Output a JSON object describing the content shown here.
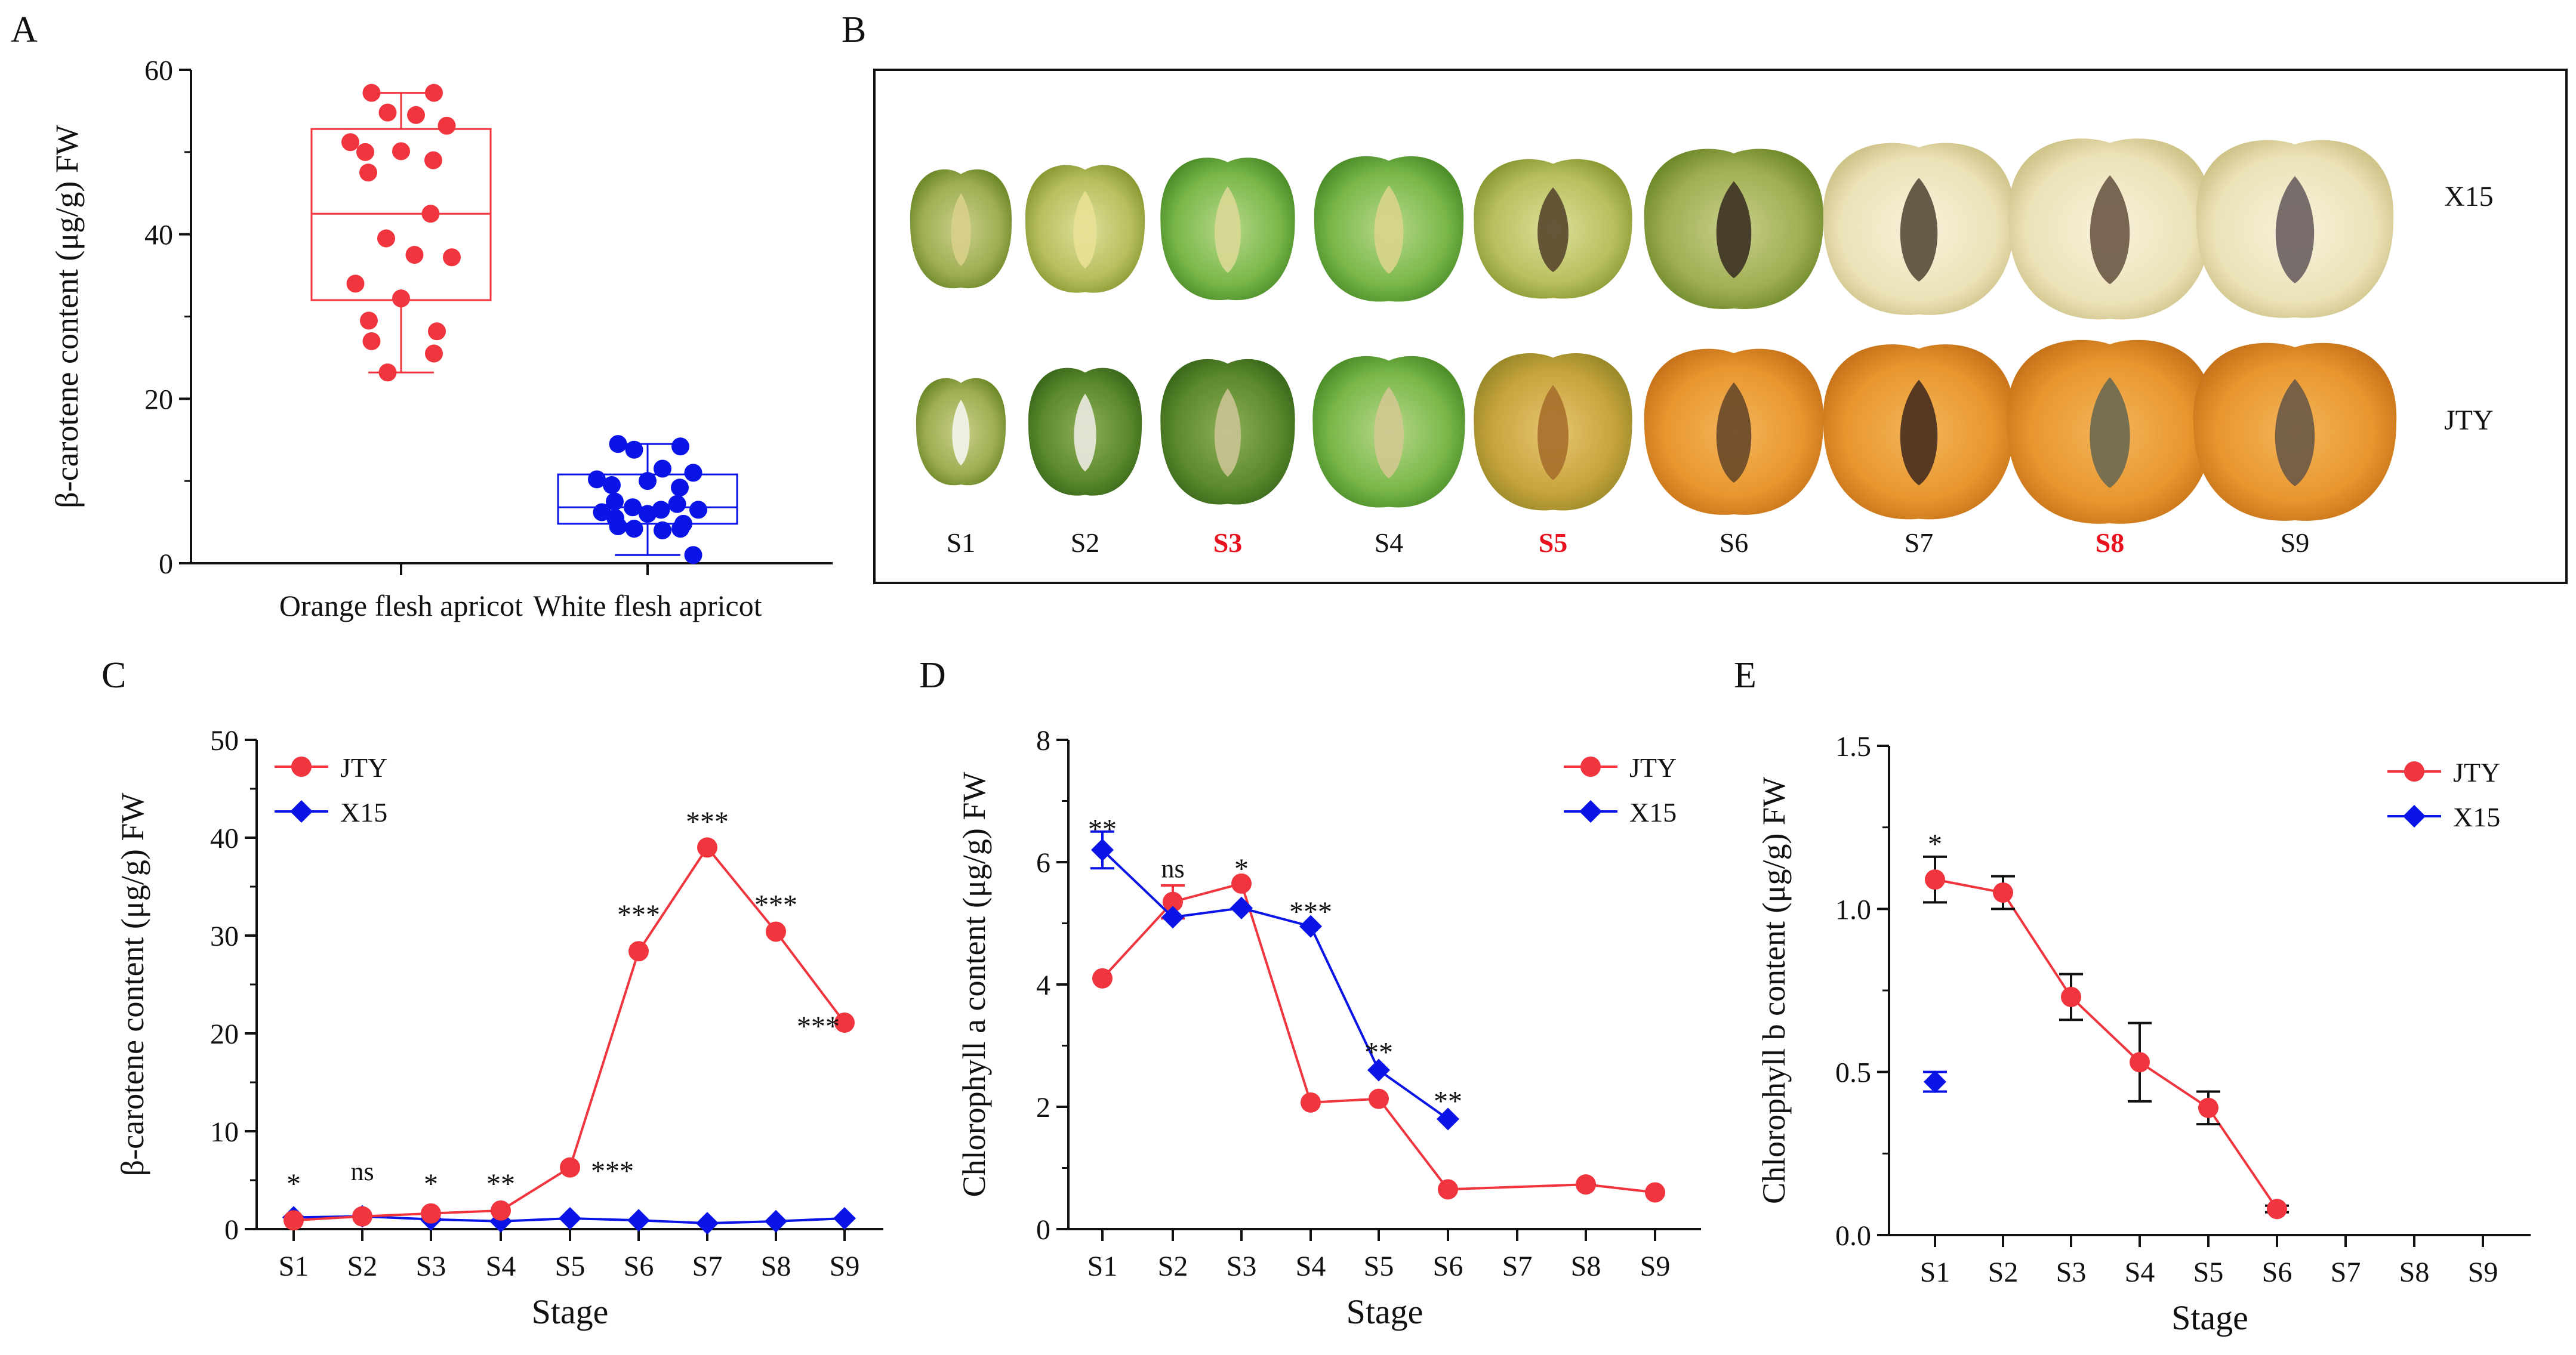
{
  "panels": {
    "A": {
      "letter": "A"
    },
    "B": {
      "letter": "B"
    },
    "C": {
      "letter": "C"
    },
    "D": {
      "letter": "D"
    },
    "E": {
      "letter": "E"
    }
  },
  "colors": {
    "red": "#f0353e",
    "blue": "#0a14e6",
    "axis": "#111111"
  },
  "photo_panel": {
    "row_labels": [
      "X15",
      "JTY"
    ],
    "stage_labels": [
      "S1",
      "S2",
      "S3",
      "S4",
      "S5",
      "S6",
      "S7",
      "S8",
      "S9"
    ],
    "highlighted_stages": [
      "S3",
      "S5",
      "S8"
    ]
  },
  "chart_data": [
    {
      "panel": "A",
      "type": "box",
      "ylabel": "β-carotene content (μg/g) FW",
      "categories": [
        "Orange flesh apricot",
        "White flesh apricot"
      ],
      "yticks": [
        0,
        20,
        40,
        60
      ],
      "ylim": [
        0,
        60
      ],
      "groups": [
        {
          "name": "Orange flesh apricot",
          "color": "#f0353e",
          "min": 23.2,
          "q1": 32.0,
          "median": 42.5,
          "q3": 52.8,
          "max": 57.2,
          "points": [
            57.2,
            57.2,
            54.8,
            54.5,
            53.2,
            51.2,
            50.1,
            50.0,
            49.0,
            47.5,
            42.5,
            39.5,
            37.5,
            37.2,
            34.0,
            32.2,
            29.5,
            28.2,
            27.0,
            25.5,
            23.2
          ]
        },
        {
          "name": "White flesh apricot",
          "color": "#0a14e6",
          "min": 1.0,
          "q1": 4.8,
          "median": 6.8,
          "q3": 10.8,
          "max": 14.5,
          "points": [
            14.5,
            14.2,
            13.8,
            11.5,
            11.0,
            10.2,
            10.0,
            9.5,
            9.2,
            7.5,
            7.2,
            6.8,
            6.5,
            6.5,
            6.2,
            6.0,
            5.5,
            4.8,
            4.5,
            4.2,
            4.2,
            4.0,
            1.0
          ]
        }
      ]
    },
    {
      "panel": "C",
      "type": "line",
      "xlabel": "Stage",
      "ylabel": "β-carotene content (μg/g) FW",
      "categories": [
        "S1",
        "S2",
        "S3",
        "S4",
        "S5",
        "S6",
        "S7",
        "S8",
        "S9"
      ],
      "yticks": [
        0,
        10,
        20,
        30,
        40,
        50
      ],
      "ylim": [
        0,
        50
      ],
      "legend": "top-left",
      "series": [
        {
          "name": "JTY",
          "color": "#f0353e",
          "marker": "circle",
          "values": [
            0.9,
            1.3,
            1.6,
            1.9,
            6.3,
            28.4,
            39.0,
            30.4,
            21.1
          ]
        },
        {
          "name": "X15",
          "color": "#0a14e6",
          "marker": "diamond",
          "values": [
            1.2,
            1.3,
            1.0,
            0.8,
            1.1,
            0.9,
            0.6,
            0.8,
            1.1
          ]
        }
      ],
      "annotations": [
        {
          "stage": "S1",
          "text": "*",
          "y": 5.0
        },
        {
          "stage": "S2",
          "text": "ns",
          "y": 5.0
        },
        {
          "stage": "S3",
          "text": "*",
          "y": 5.0
        },
        {
          "stage": "S4",
          "text": "**",
          "y": 5.0
        },
        {
          "stage": "S5",
          "text": "***",
          "y": 6.3,
          "side": "right"
        },
        {
          "stage": "S6",
          "text": "***",
          "y": 32.5
        },
        {
          "stage": "S7",
          "text": "***",
          "y": 42.0
        },
        {
          "stage": "S8",
          "text": "***",
          "y": 33.5
        },
        {
          "stage": "S9",
          "text": "***",
          "y": 21.1,
          "side": "left"
        }
      ]
    },
    {
      "panel": "D",
      "type": "line",
      "xlabel": "Stage",
      "ylabel": "Chlorophyll a content (μg/g) FW",
      "categories": [
        "S1",
        "S2",
        "S3",
        "S4",
        "S5",
        "S6",
        "S7",
        "S8",
        "S9"
      ],
      "yticks": [
        0,
        2,
        4,
        6,
        8
      ],
      "ylim": [
        0,
        8
      ],
      "legend": "top-right",
      "series": [
        {
          "name": "JTY",
          "color": "#f0353e",
          "marker": "circle",
          "values": [
            4.1,
            5.35,
            5.65,
            2.07,
            2.13,
            0.65,
            null,
            0.73,
            0.6
          ],
          "errors": [
            0,
            0.27,
            0,
            0,
            0,
            0,
            0,
            0,
            0
          ]
        },
        {
          "name": "X15",
          "color": "#0a14e6",
          "marker": "diamond",
          "values": [
            6.2,
            5.1,
            5.25,
            4.95,
            2.6,
            1.8,
            null,
            null,
            null
          ],
          "errors": [
            0.3,
            0,
            0,
            0,
            0,
            0,
            0,
            0,
            0
          ]
        }
      ],
      "annotations": [
        {
          "stage": "S1",
          "text": "**",
          "y": 6.6
        },
        {
          "stage": "S2",
          "text": "ns",
          "y": 5.75
        },
        {
          "stage": "S3",
          "text": "*",
          "y": 5.95
        },
        {
          "stage": "S4",
          "text": "***",
          "y": 5.25
        },
        {
          "stage": "S5",
          "text": "**",
          "y": 2.95
        },
        {
          "stage": "S6",
          "text": "**",
          "y": 2.15
        }
      ]
    },
    {
      "panel": "E",
      "type": "line",
      "xlabel": "Stage",
      "ylabel": "Chlorophyll b content (μg/g) FW",
      "categories": [
        "S1",
        "S2",
        "S3",
        "S4",
        "S5",
        "S6",
        "S7",
        "S8",
        "S9"
      ],
      "yticks": [
        0.0,
        0.5,
        1.0,
        1.5
      ],
      "ylim": [
        0,
        1.5
      ],
      "legend": "top-right",
      "series": [
        {
          "name": "JTY",
          "color": "#f0353e",
          "marker": "circle",
          "values": [
            1.09,
            1.05,
            0.73,
            0.53,
            0.39,
            0.08,
            null,
            null,
            null
          ],
          "errors": [
            0.07,
            0.05,
            0.07,
            0.12,
            0.05,
            0.01,
            0,
            0,
            0
          ]
        },
        {
          "name": "X15",
          "color": "#0a14e6",
          "marker": "diamond",
          "values": [
            0.47,
            null,
            null,
            null,
            null,
            null,
            null,
            null,
            null
          ],
          "errors": [
            0.03,
            0,
            0,
            0,
            0,
            0,
            0,
            0,
            0
          ],
          "connect": false
        }
      ],
      "annotations": [
        {
          "stage": "S1",
          "text": "*",
          "y": 1.21
        }
      ]
    }
  ]
}
